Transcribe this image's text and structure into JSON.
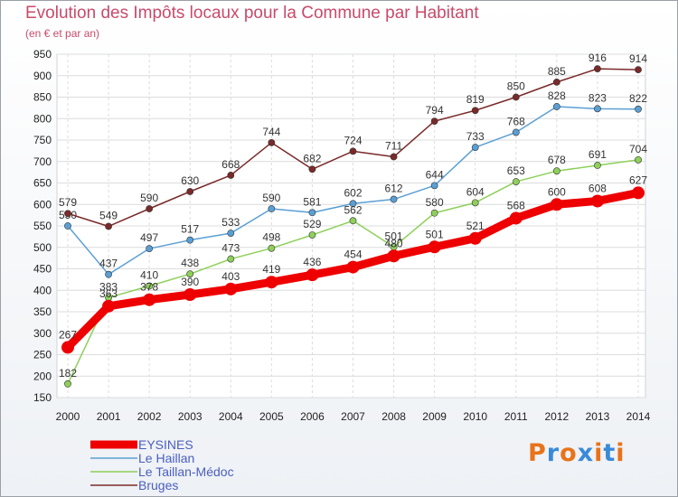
{
  "title": "Evolution des Impôts locaux pour la Commune par Habitant",
  "subtitle": "(en € et par an)",
  "logo": {
    "letters": [
      "P",
      "r",
      "o",
      "x",
      "i",
      "t",
      "i"
    ],
    "colors": [
      "#e8731a",
      "#3a8ad8",
      "#e8731a",
      "#3a8ad8",
      "#e8731a",
      "#3a8ad8",
      "#e8731a"
    ]
  },
  "chart_data": {
    "type": "line",
    "x": [
      2000,
      2001,
      2002,
      2003,
      2004,
      2005,
      2006,
      2007,
      2008,
      2009,
      2010,
      2011,
      2012,
      2013,
      2014
    ],
    "ylim": [
      150,
      950
    ],
    "yticks": [
      150,
      200,
      250,
      300,
      350,
      400,
      450,
      500,
      550,
      600,
      650,
      700,
      750,
      800,
      850,
      900,
      950
    ],
    "grid": true,
    "legend_position": "bottom-left",
    "series": [
      {
        "name": "EYSINES",
        "color": "#ee0000",
        "bold": true,
        "values": [
          267,
          363,
          378,
          390,
          403,
          419,
          436,
          454,
          480,
          501,
          521,
          568,
          600,
          608,
          627
        ]
      },
      {
        "name": "Le Haillan",
        "color": "#5a9fd4",
        "values": [
          550,
          437,
          497,
          517,
          533,
          590,
          581,
          602,
          612,
          644,
          733,
          768,
          828,
          823,
          822
        ]
      },
      {
        "name": "Le Taillan-Médoc",
        "color": "#8ed05a",
        "values": [
          182,
          383,
          410,
          438,
          473,
          498,
          529,
          562,
          501,
          580,
          604,
          653,
          678,
          691,
          704
        ]
      },
      {
        "name": "Bruges",
        "color": "#7a2a2a",
        "values": [
          579,
          549,
          590,
          630,
          668,
          744,
          682,
          724,
          711,
          794,
          819,
          850,
          885,
          916,
          914
        ]
      }
    ]
  }
}
